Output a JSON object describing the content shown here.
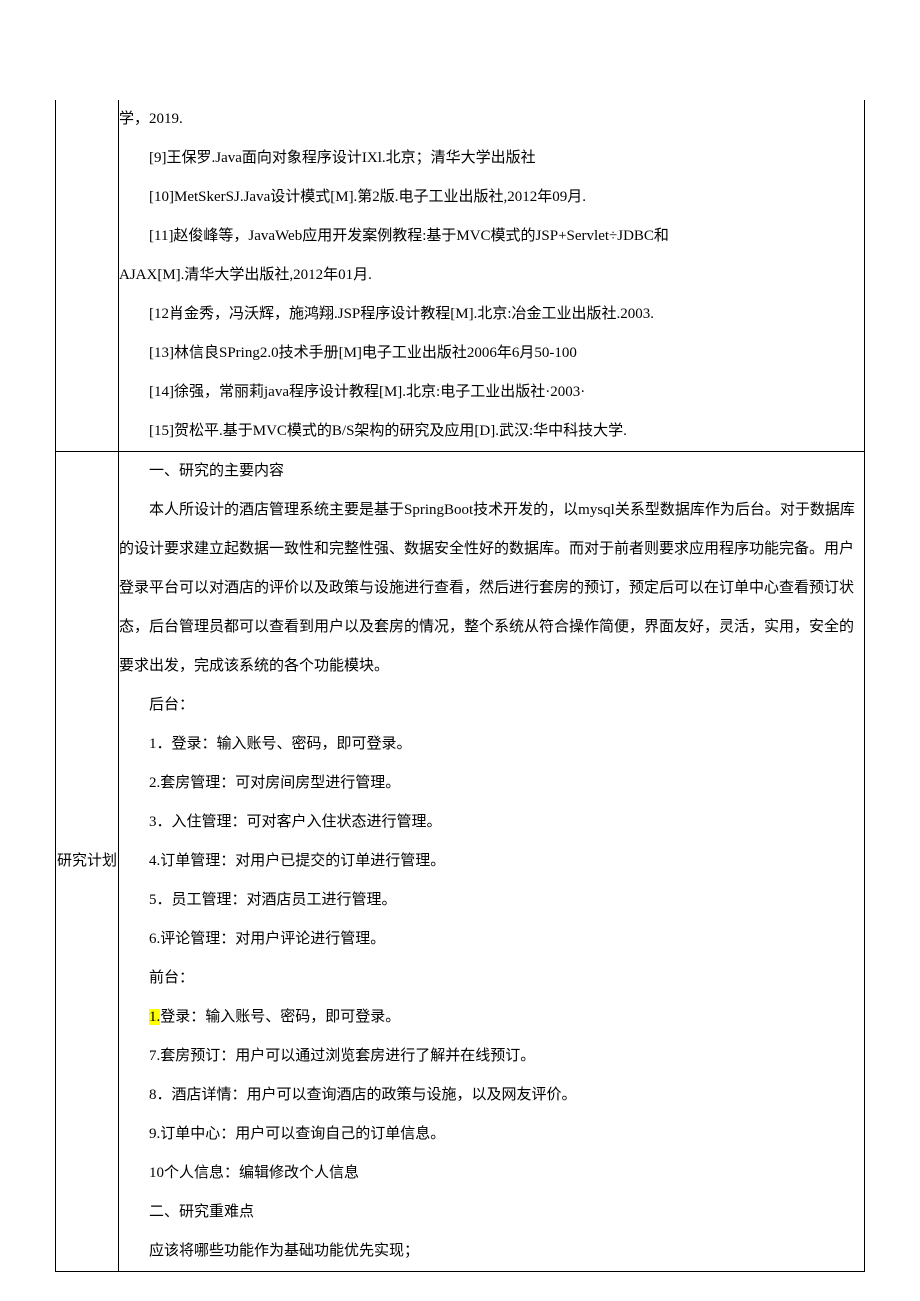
{
  "row1": {
    "label": "",
    "lines": [
      {
        "cls": "para-noindent",
        "text": "学，2019."
      },
      {
        "cls": "para",
        "text": "[9]王保罗.Java面向对象程序设计IXl.北京；清华大学出版社"
      },
      {
        "cls": "para",
        "text": "[10]MetSkerSJ.Java设计模式[M].第2版.电子工业出版社,2012年09月."
      },
      {
        "cls": "para",
        "text": "[11]赵俊峰等，JavaWeb应用开发案例教程:基于MVC模式的JSP+Servlet÷JDBC和"
      },
      {
        "cls": "para-noindent",
        "text": "AJAX[M].清华大学出版社,2012年01月."
      },
      {
        "cls": "para",
        "text": "[12肖金秀，冯沃辉，施鸿翔.JSP程序设计教程[M].北京:冶金工业出版社.2003."
      },
      {
        "cls": "para",
        "text": "[13]林信良SPring2.0技术手册[M]电子工业出版社2006年6月50-100"
      },
      {
        "cls": "para",
        "text": "[14]徐强，常丽莉java程序设计教程[M].北京:电子工业出版社·2003·"
      },
      {
        "cls": "para",
        "text": "[15]贺松平.基于MVC模式的B/S架构的研究及应用[D].武汉:华中科技大学."
      }
    ]
  },
  "row2": {
    "label": "研究计划",
    "sections": [
      {
        "cls": "item",
        "text": "一、研究的主要内容"
      },
      {
        "cls": "para",
        "text": "本人所设计的酒店管理系统主要是基于SpringBoot技术开发的，以mysql关系型数据库作为后台。对于数据库的设计要求建立起数据一致性和完整性强、数据安全性好的数据库。而对于前者则要求应用程序功能完备。用户登录平台可以对酒店的评价以及政策与设施进行查看，然后进行套房的预订，预定后可以在订单中心查看预订状态，后台管理员都可以查看到用户以及套房的情况，整个系统从符合操作简便，界面友好，灵活，实用，安全的要求出发，完成该系统的各个功能模块。"
      },
      {
        "cls": "item",
        "text": "后台："
      },
      {
        "cls": "item",
        "text": "1．登录：输入账号、密码，即可登录。"
      },
      {
        "cls": "item",
        "text": "2.套房管理：可对房间房型进行管理。"
      },
      {
        "cls": "item",
        "text": "3．入住管理：可对客户入住状态进行管理。"
      },
      {
        "cls": "item",
        "text": "4.订单管理：对用户已提交的订单进行管理。"
      },
      {
        "cls": "item",
        "text": "5．员工管理：对酒店员工进行管理。"
      },
      {
        "cls": "item",
        "text": "6.评论管理：对用户评论进行管理。"
      },
      {
        "cls": "item",
        "text": "前台："
      },
      {
        "cls": "item",
        "highlight_prefix": "1.",
        "text": "登录：输入账号、密码，即可登录。"
      },
      {
        "cls": "item",
        "text": "7.套房预订：用户可以通过浏览套房进行了解并在线预订。"
      },
      {
        "cls": "item",
        "text": "8．酒店详情：用户可以查询酒店的政策与设施，以及网友评价。"
      },
      {
        "cls": "item",
        "text": "9.订单中心：用户可以查询自己的订单信息。"
      },
      {
        "cls": "item",
        "text": "10个人信息：编辑修改个人信息"
      },
      {
        "cls": "item",
        "text": "二、研究重难点"
      },
      {
        "cls": "item",
        "text": "应该将哪些功能作为基础功能优先实现；"
      }
    ]
  }
}
